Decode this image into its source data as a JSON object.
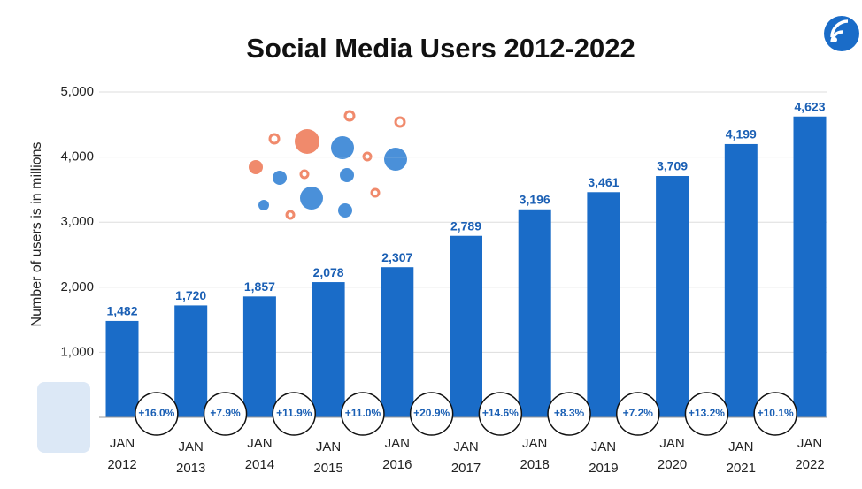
{
  "chart_data": {
    "type": "bar",
    "title": "Social Media Users 2012-2022",
    "y_label": "Number of users is in millions",
    "categories": [
      "JAN 2012",
      "JAN 2013",
      "JAN 2014",
      "JAN 2015",
      "JAN 2016",
      "JAN 2017",
      "JAN 2018",
      "JAN 2019",
      "JAN 2020",
      "JAN 2021",
      "JAN 2022"
    ],
    "values": [
      1482,
      1720,
      1857,
      2078,
      2307,
      2789,
      3196,
      3461,
      3709,
      4199,
      4623
    ],
    "value_labels": [
      "1,482",
      "1,720",
      "1,857",
      "2,078",
      "2,307",
      "2,789",
      "3,196",
      "3,461",
      "3,709",
      "4,199",
      "4,623"
    ],
    "annotations": [
      "+16.0%",
      "+7.9%",
      "+11.9%",
      "+11.0%",
      "+20.9%",
      "+14.6%",
      "+8.3%",
      "+7.2%",
      "+13.2%",
      "+10.1%"
    ],
    "color": "#1a6cc8",
    "ylim": [
      0,
      5000
    ],
    "yticks": [
      {
        "value": 1000,
        "label": "1,000"
      },
      {
        "value": 2000,
        "label": "2,000"
      },
      {
        "value": 3000,
        "label": "3,000"
      },
      {
        "value": 4000,
        "label": "4,000"
      },
      {
        "value": 5000,
        "label": "5,000"
      }
    ],
    "grid": true
  }
}
